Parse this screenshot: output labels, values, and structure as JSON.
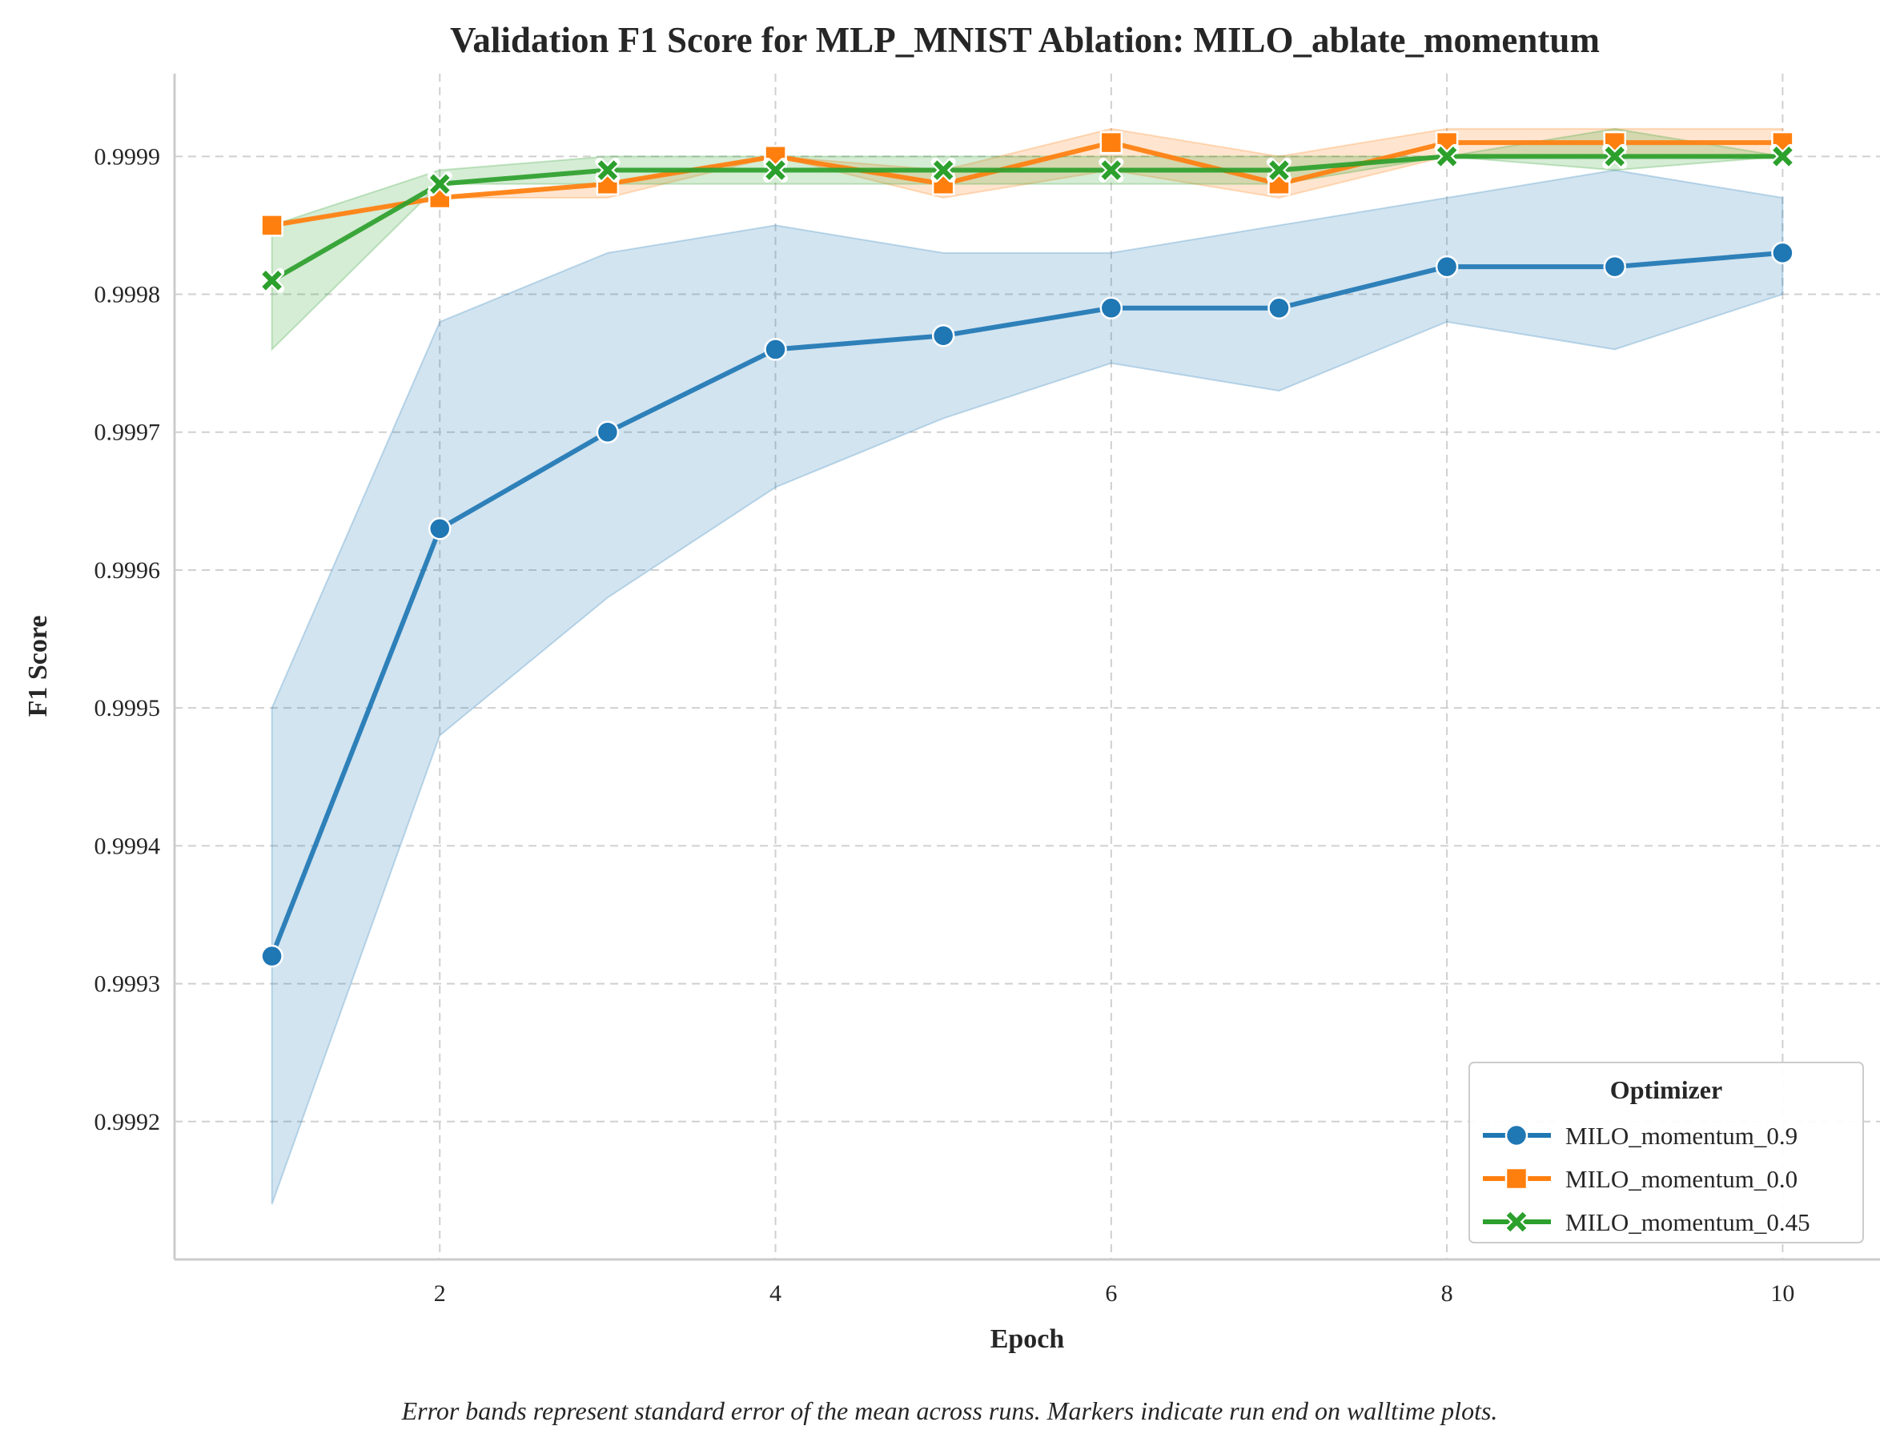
{
  "chart_data": {
    "type": "line",
    "title": "Validation F1 Score for MLP_MNIST Ablation: MILO_ablate_momentum",
    "xlabel": "Epoch",
    "ylabel": "F1 Score",
    "caption": "Error bands represent standard error of the mean across runs. Markers indicate run end on walltime plots.",
    "x": [
      1,
      2,
      3,
      4,
      5,
      6,
      7,
      8,
      9,
      10
    ],
    "xlim": [
      0.42,
      10.58
    ],
    "ylim": [
      0.9991,
      0.99996
    ],
    "xticks": [
      2,
      4,
      6,
      8,
      10
    ],
    "xtick_labels": [
      "2",
      "4",
      "6",
      "8",
      "10"
    ],
    "yticks": [
      0.9992,
      0.9993,
      0.9994,
      0.9995,
      0.9996,
      0.9997,
      0.9998,
      0.9999
    ],
    "ytick_labels": [
      "0.9992",
      "0.9993",
      "0.9994",
      "0.9995",
      "0.9996",
      "0.9997",
      "0.9998",
      "0.9999"
    ],
    "grid": true,
    "legend": {
      "title": "Optimizer",
      "placement": "lower-right"
    },
    "series": [
      {
        "name": "MILO_momentum_0.9",
        "color": "#1f77b4",
        "marker": "circle",
        "values": [
          0.99932,
          0.99963,
          0.9997,
          0.99976,
          0.99977,
          0.99979,
          0.99979,
          0.99982,
          0.99982,
          0.99983
        ],
        "lower": [
          0.99914,
          0.99948,
          0.99958,
          0.99966,
          0.99971,
          0.99975,
          0.99973,
          0.99978,
          0.99976,
          0.9998
        ],
        "upper": [
          0.9995,
          0.99978,
          0.99983,
          0.99985,
          0.99983,
          0.99983,
          0.99985,
          0.99987,
          0.99989,
          0.99987
        ]
      },
      {
        "name": "MILO_momentum_0.0",
        "color": "#ff7f0e",
        "marker": "square",
        "values": [
          0.99985,
          0.99987,
          0.99988,
          0.9999,
          0.99988,
          0.99991,
          0.99988,
          0.99991,
          0.99991,
          0.99991
        ],
        "lower": [
          0.99985,
          0.99987,
          0.99987,
          0.9999,
          0.99987,
          0.99989,
          0.99987,
          0.9999,
          0.9999,
          0.9999
        ],
        "upper": [
          0.99985,
          0.99987,
          0.99988,
          0.9999,
          0.99989,
          0.99992,
          0.9999,
          0.99992,
          0.99992,
          0.99992
        ]
      },
      {
        "name": "MILO_momentum_0.45",
        "color": "#2ca02c",
        "marker": "x",
        "values": [
          0.99981,
          0.99988,
          0.99989,
          0.99989,
          0.99989,
          0.99989,
          0.99989,
          0.9999,
          0.9999,
          0.9999
        ],
        "lower": [
          0.99976,
          0.99988,
          0.99988,
          0.99988,
          0.99988,
          0.99988,
          0.99988,
          0.9999,
          0.99989,
          0.9999
        ],
        "upper": [
          0.99985,
          0.99989,
          0.9999,
          0.9999,
          0.9999,
          0.9999,
          0.9999,
          0.9999,
          0.99992,
          0.9999
        ]
      }
    ]
  }
}
